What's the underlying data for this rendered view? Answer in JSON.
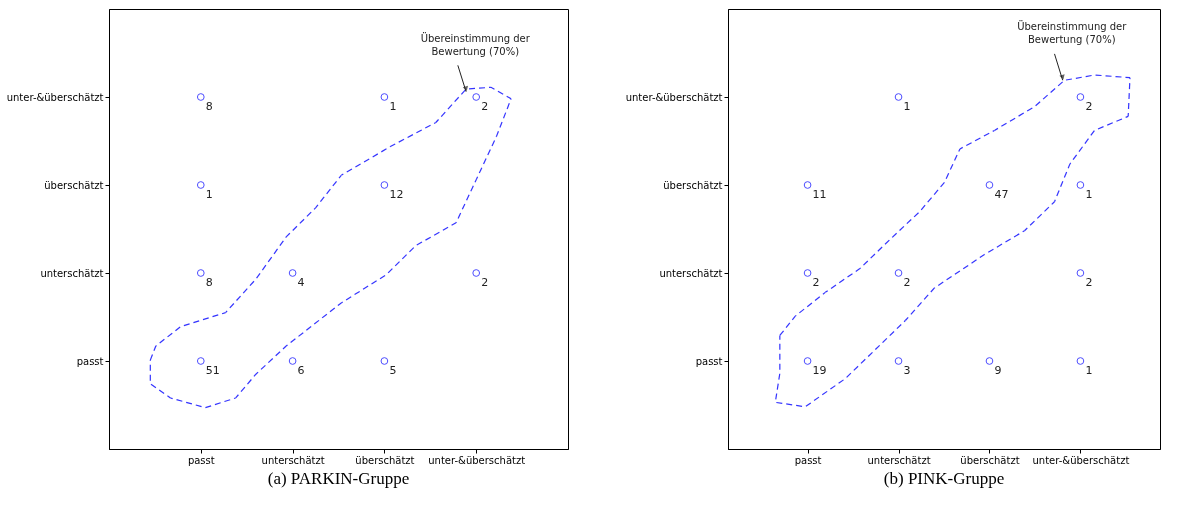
{
  "chart_data": [
    {
      "type": "heatmap",
      "title": "(a) PARKIN-Gruppe",
      "marker": "circle",
      "data_labels": true,
      "categories": [
        "passt",
        "unterschätzt",
        "überschätzt",
        "unter-&überschätzt"
      ],
      "y_categories": [
        "unter-&überschätzt",
        "überschätzt",
        "unterschätzt",
        "passt"
      ],
      "cells": [
        [
          8,
          null,
          1,
          2
        ],
        [
          1,
          null,
          12,
          null
        ],
        [
          8,
          4,
          null,
          2
        ],
        [
          51,
          6,
          5,
          null
        ]
      ],
      "annotations": [
        "Übereinstimmung der Bewertung (70%)"
      ]
    },
    {
      "type": "heatmap",
      "title": "(b) PINK-Gruppe",
      "marker": "circle",
      "data_labels": true,
      "categories": [
        "passt",
        "unterschätzt",
        "überschätzt",
        "unter-&überschätzt"
      ],
      "y_categories": [
        "unter-&überschätzt",
        "überschätzt",
        "unterschätzt",
        "passt"
      ],
      "cells": [
        [
          null,
          1,
          null,
          2
        ],
        [
          11,
          null,
          47,
          1
        ],
        [
          2,
          2,
          null,
          2
        ],
        [
          19,
          3,
          9,
          1
        ]
      ],
      "annotations": [
        "Übereinstimmung der Bewertung (70%)"
      ]
    }
  ]
}
